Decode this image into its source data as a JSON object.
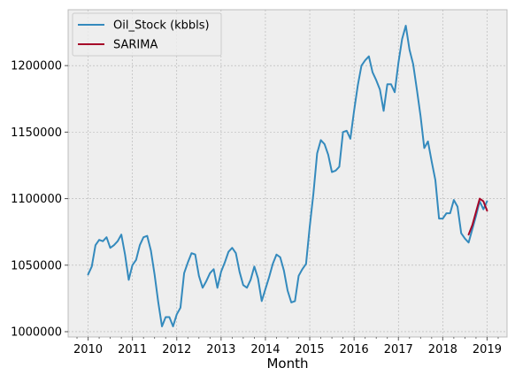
{
  "chart_data": {
    "type": "line",
    "xlabel": "Month",
    "ylabel": "",
    "title": "",
    "xlim": [
      2009.55,
      2019.45
    ],
    "ylim": [
      996000,
      1242000
    ],
    "x_ticks": [
      2010,
      2011,
      2012,
      2013,
      2014,
      2015,
      2016,
      2017,
      2018,
      2019
    ],
    "x_tick_labels": [
      "2010",
      "2011",
      "2012",
      "2013",
      "2014",
      "2015",
      "2016",
      "2017",
      "2018",
      "2019"
    ],
    "y_ticks": [
      1000000,
      1050000,
      1100000,
      1150000,
      1200000
    ],
    "y_tick_labels": [
      "1000000",
      "1050000",
      "1100000",
      "1150000",
      "1200000"
    ],
    "grid": true,
    "legend_position": "top-left",
    "series": [
      {
        "name": "Oil_Stock (kbbls)",
        "color": "#348abd",
        "start_year": 2010.0,
        "step": 0.08333,
        "values": [
          1043000,
          1049000,
          1065000,
          1069000,
          1068000,
          1071000,
          1063000,
          1065000,
          1068000,
          1073000,
          1058000,
          1039000,
          1050000,
          1054000,
          1065000,
          1071000,
          1072000,
          1061000,
          1043000,
          1022000,
          1004000,
          1011000,
          1011000,
          1004000,
          1013000,
          1018000,
          1044000,
          1052000,
          1059000,
          1058000,
          1042000,
          1033000,
          1038000,
          1044000,
          1047000,
          1033000,
          1045000,
          1052000,
          1060000,
          1063000,
          1059000,
          1045000,
          1035000,
          1033000,
          1039000,
          1049000,
          1040000,
          1023000,
          1032000,
          1041000,
          1051000,
          1058000,
          1056000,
          1046000,
          1031000,
          1022000,
          1023000,
          1042000,
          1047000,
          1051000,
          1079000,
          1104000,
          1134000,
          1144000,
          1141000,
          1133000,
          1120000,
          1121000,
          1124000,
          1150000,
          1151000,
          1145000,
          1166000,
          1185000,
          1200000,
          1204000,
          1207000,
          1195000,
          1189000,
          1182000,
          1166000,
          1186000,
          1186000,
          1180000,
          1202000,
          1220000,
          1230000,
          1212000,
          1201000,
          1182000,
          1162000,
          1138000,
          1143000,
          1128000,
          1114000,
          1085000,
          1085000,
          1089000,
          1089000,
          1099000,
          1094000,
          1074000,
          1070000,
          1067000,
          1077000,
          1087000,
          1098000,
          1092000,
          1098000
        ]
      },
      {
        "name": "SARIMA",
        "color": "#a60628",
        "start_year": 2018.5833,
        "step": 0.08333,
        "values": [
          1073000,
          1080000,
          1090000,
          1100000,
          1098000,
          1091000
        ]
      }
    ]
  }
}
